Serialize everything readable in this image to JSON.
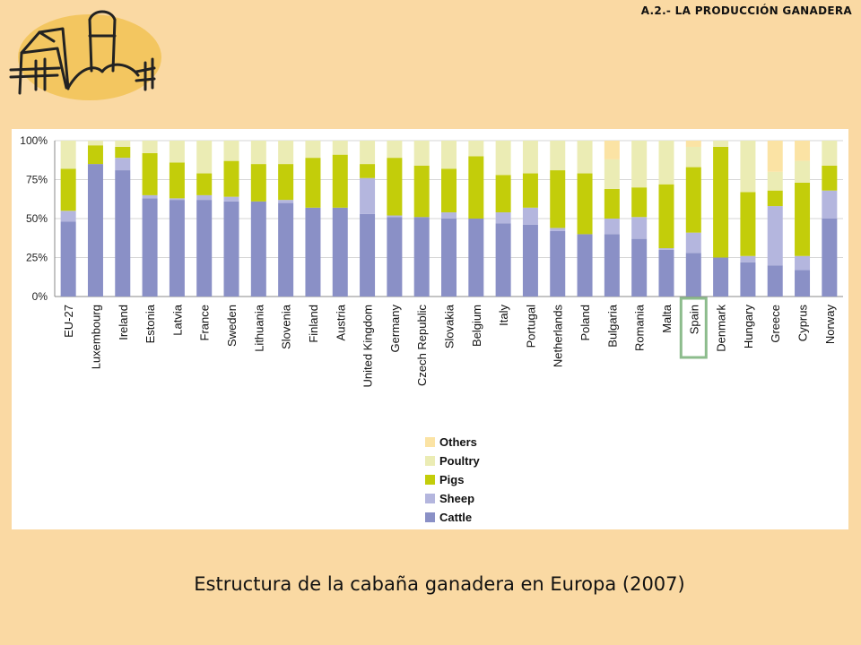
{
  "header": {
    "title": "A.2.- LA PRODUCCIÓN GANADERA"
  },
  "caption": "Estructura de la cabaña ganadera en Europa (2007)",
  "colors": {
    "Cattle": "#8a90c6",
    "Sheep": "#b4b6de",
    "Pigs": "#c3cd0a",
    "Poultry": "#ebecb4",
    "Others": "#fbe3a4",
    "highlight_border": "#8cbc8c",
    "grid": "#d6d6d6"
  },
  "chart_data": {
    "type": "bar",
    "stacked": true,
    "title": "",
    "xlabel": "",
    "ylabel": "",
    "ylim": [
      0,
      100
    ],
    "yticks": [
      "0%",
      "25%",
      "50%",
      "75%",
      "100%"
    ],
    "grid": true,
    "legend_position": "bottom-center",
    "highlighted_category": "Spain",
    "categories": [
      "EU-27",
      "Luxembourg",
      "Ireland",
      "Estonia",
      "Latvia",
      "France",
      "Sweden",
      "Lithuania",
      "Slovenia",
      "Finland",
      "Austria",
      "United Kingdom",
      "Germany",
      "Czech Republic",
      "Slovakia",
      "Belgium",
      "Italy",
      "Portugal",
      "Netherlands",
      "Poland",
      "Bulgaria",
      "Romania",
      "Malta",
      "Spain",
      "Denmark",
      "Hungary",
      "Greece",
      "Cyprus",
      "Norway"
    ],
    "series": [
      {
        "name": "Cattle",
        "values": [
          48,
          85,
          81,
          63,
          62,
          62,
          61,
          61,
          60,
          57,
          57,
          53,
          51,
          51,
          50,
          50,
          47,
          46,
          42,
          40,
          40,
          37,
          30,
          28,
          25,
          22,
          20,
          17,
          50
        ]
      },
      {
        "name": "Sheep",
        "values": [
          7,
          0,
          8,
          2,
          1,
          3,
          3,
          0,
          2,
          0,
          0,
          23,
          1,
          0,
          4,
          0,
          7,
          11,
          2,
          0,
          10,
          14,
          1,
          13,
          0,
          4,
          38,
          9,
          18
        ]
      },
      {
        "name": "Pigs",
        "values": [
          27,
          12,
          7,
          27,
          23,
          14,
          23,
          24,
          23,
          32,
          34,
          9,
          37,
          33,
          28,
          40,
          24,
          22,
          37,
          39,
          19,
          19,
          41,
          42,
          71,
          41,
          10,
          47,
          16
        ]
      },
      {
        "name": "Poultry",
        "values": [
          18,
          3,
          4,
          8,
          14,
          21,
          13,
          15,
          15,
          11,
          9,
          15,
          11,
          16,
          18,
          10,
          22,
          21,
          19,
          21,
          19,
          30,
          28,
          13,
          4,
          33,
          12,
          14,
          16
        ]
      },
      {
        "name": "Others",
        "values": [
          0,
          0,
          0,
          0,
          0,
          0,
          0,
          0,
          0,
          0,
          0,
          0,
          0,
          0,
          0,
          0,
          0,
          0,
          0,
          0,
          12,
          0,
          0,
          4,
          0,
          0,
          20,
          13,
          0
        ]
      }
    ],
    "legend_order": [
      "Others",
      "Poultry",
      "Pigs",
      "Sheep",
      "Cattle"
    ]
  }
}
